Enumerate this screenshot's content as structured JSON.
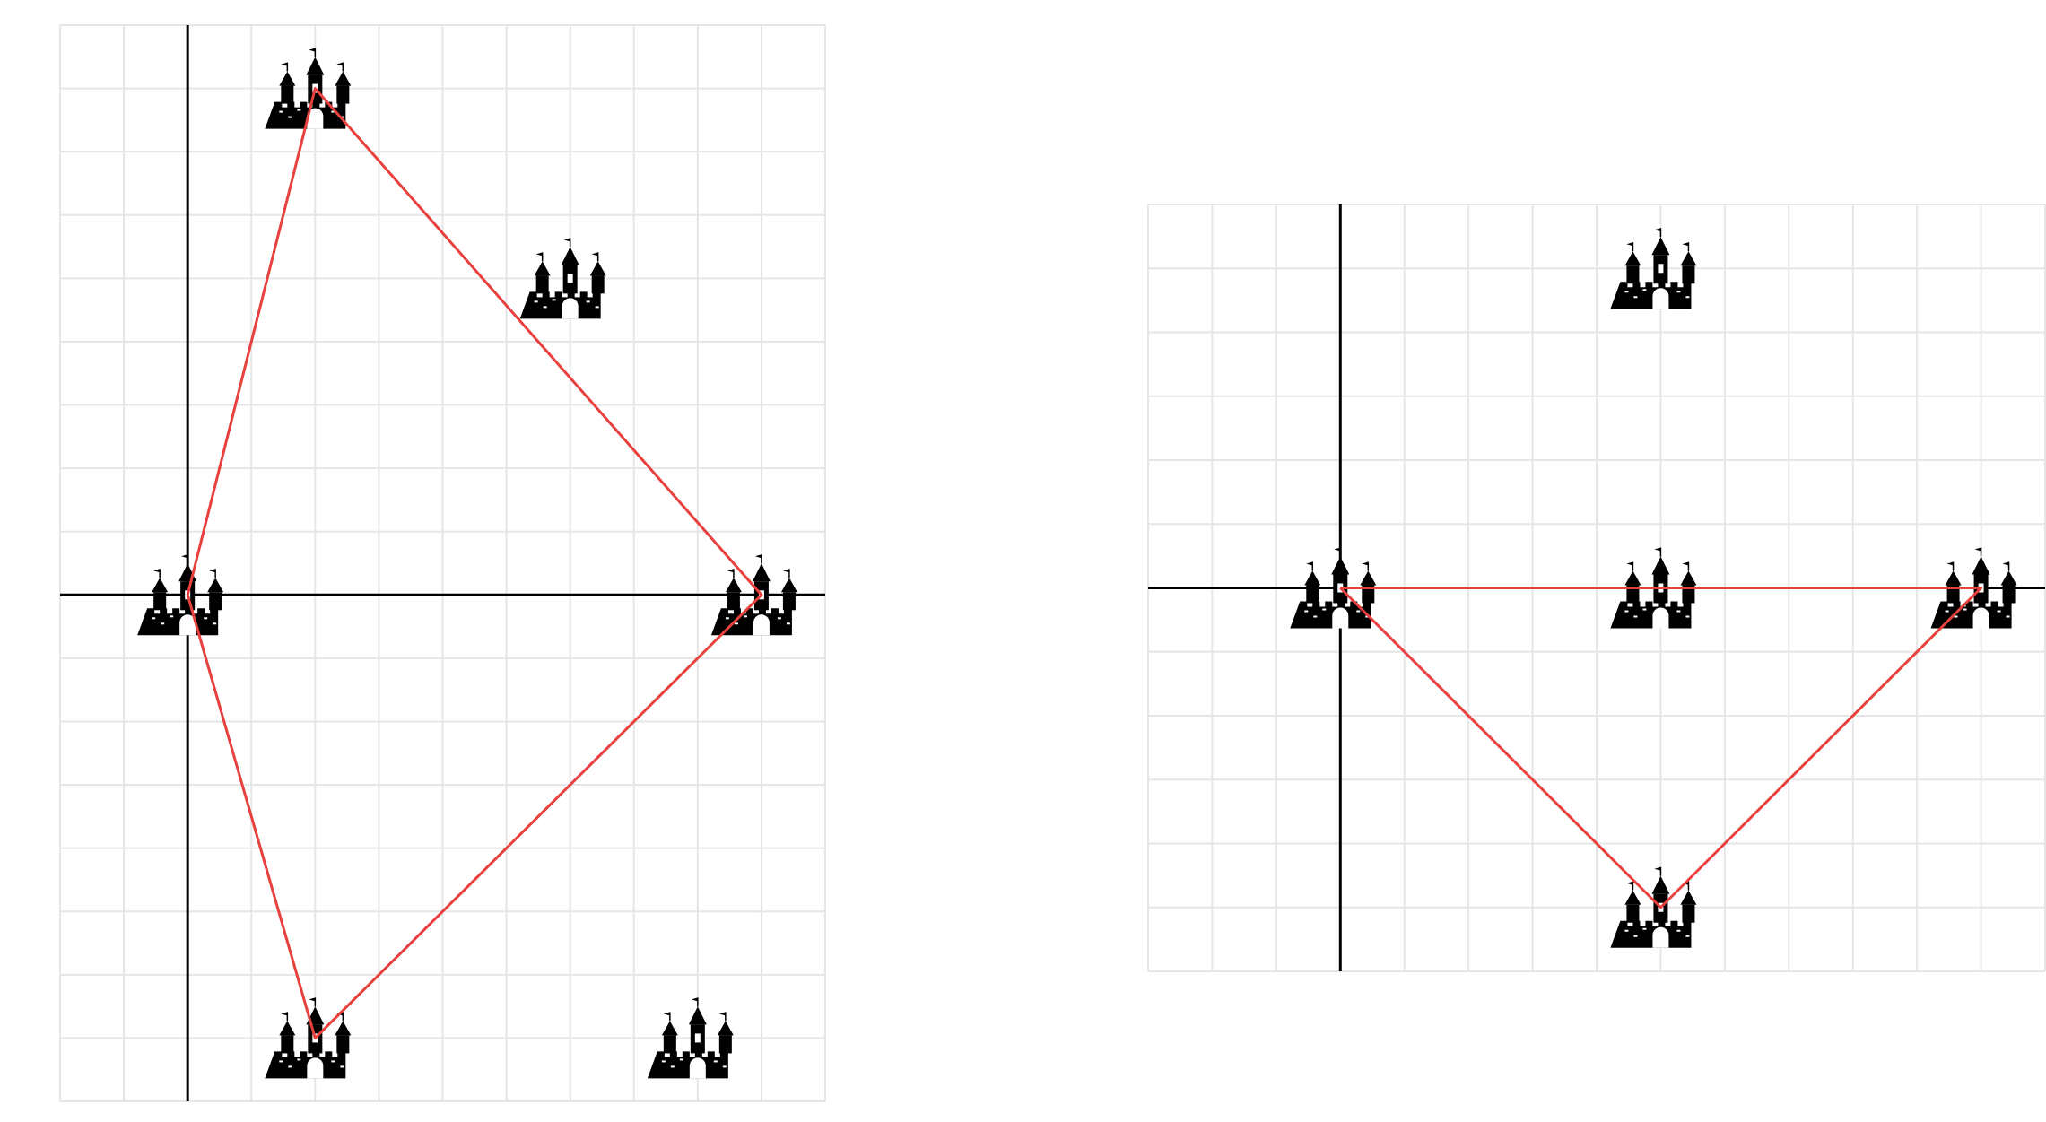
{
  "panels": [
    {
      "id": "left",
      "x_range": [
        -2,
        10
      ],
      "y_range": [
        -8,
        9
      ],
      "castles": [
        {
          "x": 2,
          "y": 8
        },
        {
          "x": 6,
          "y": 5
        },
        {
          "x": 0,
          "y": 0
        },
        {
          "x": 9,
          "y": 0
        },
        {
          "x": 2,
          "y": -7
        },
        {
          "x": 8,
          "y": -7
        }
      ],
      "path": [
        {
          "x": 0,
          "y": 0
        },
        {
          "x": 2,
          "y": 8
        },
        {
          "x": 9,
          "y": 0
        },
        {
          "x": 2,
          "y": -7
        },
        {
          "x": 0,
          "y": 0
        }
      ]
    },
    {
      "id": "right",
      "x_range": [
        -3,
        11
      ],
      "y_range": [
        -6,
        6
      ],
      "castles": [
        {
          "x": 5,
          "y": 5
        },
        {
          "x": 0,
          "y": 0
        },
        {
          "x": 5,
          "y": 0
        },
        {
          "x": 10,
          "y": 0
        },
        {
          "x": 5,
          "y": -5
        }
      ],
      "path": [
        {
          "x": 0,
          "y": 0
        },
        {
          "x": 10,
          "y": 0
        },
        {
          "x": 5,
          "y": -5
        },
        {
          "x": 0,
          "y": 0
        }
      ]
    }
  ],
  "colors": {
    "grid": "#e6e6e6",
    "axis": "#000000",
    "path": "#e8403f",
    "castle": "#000000"
  },
  "icon": "castle-icon"
}
